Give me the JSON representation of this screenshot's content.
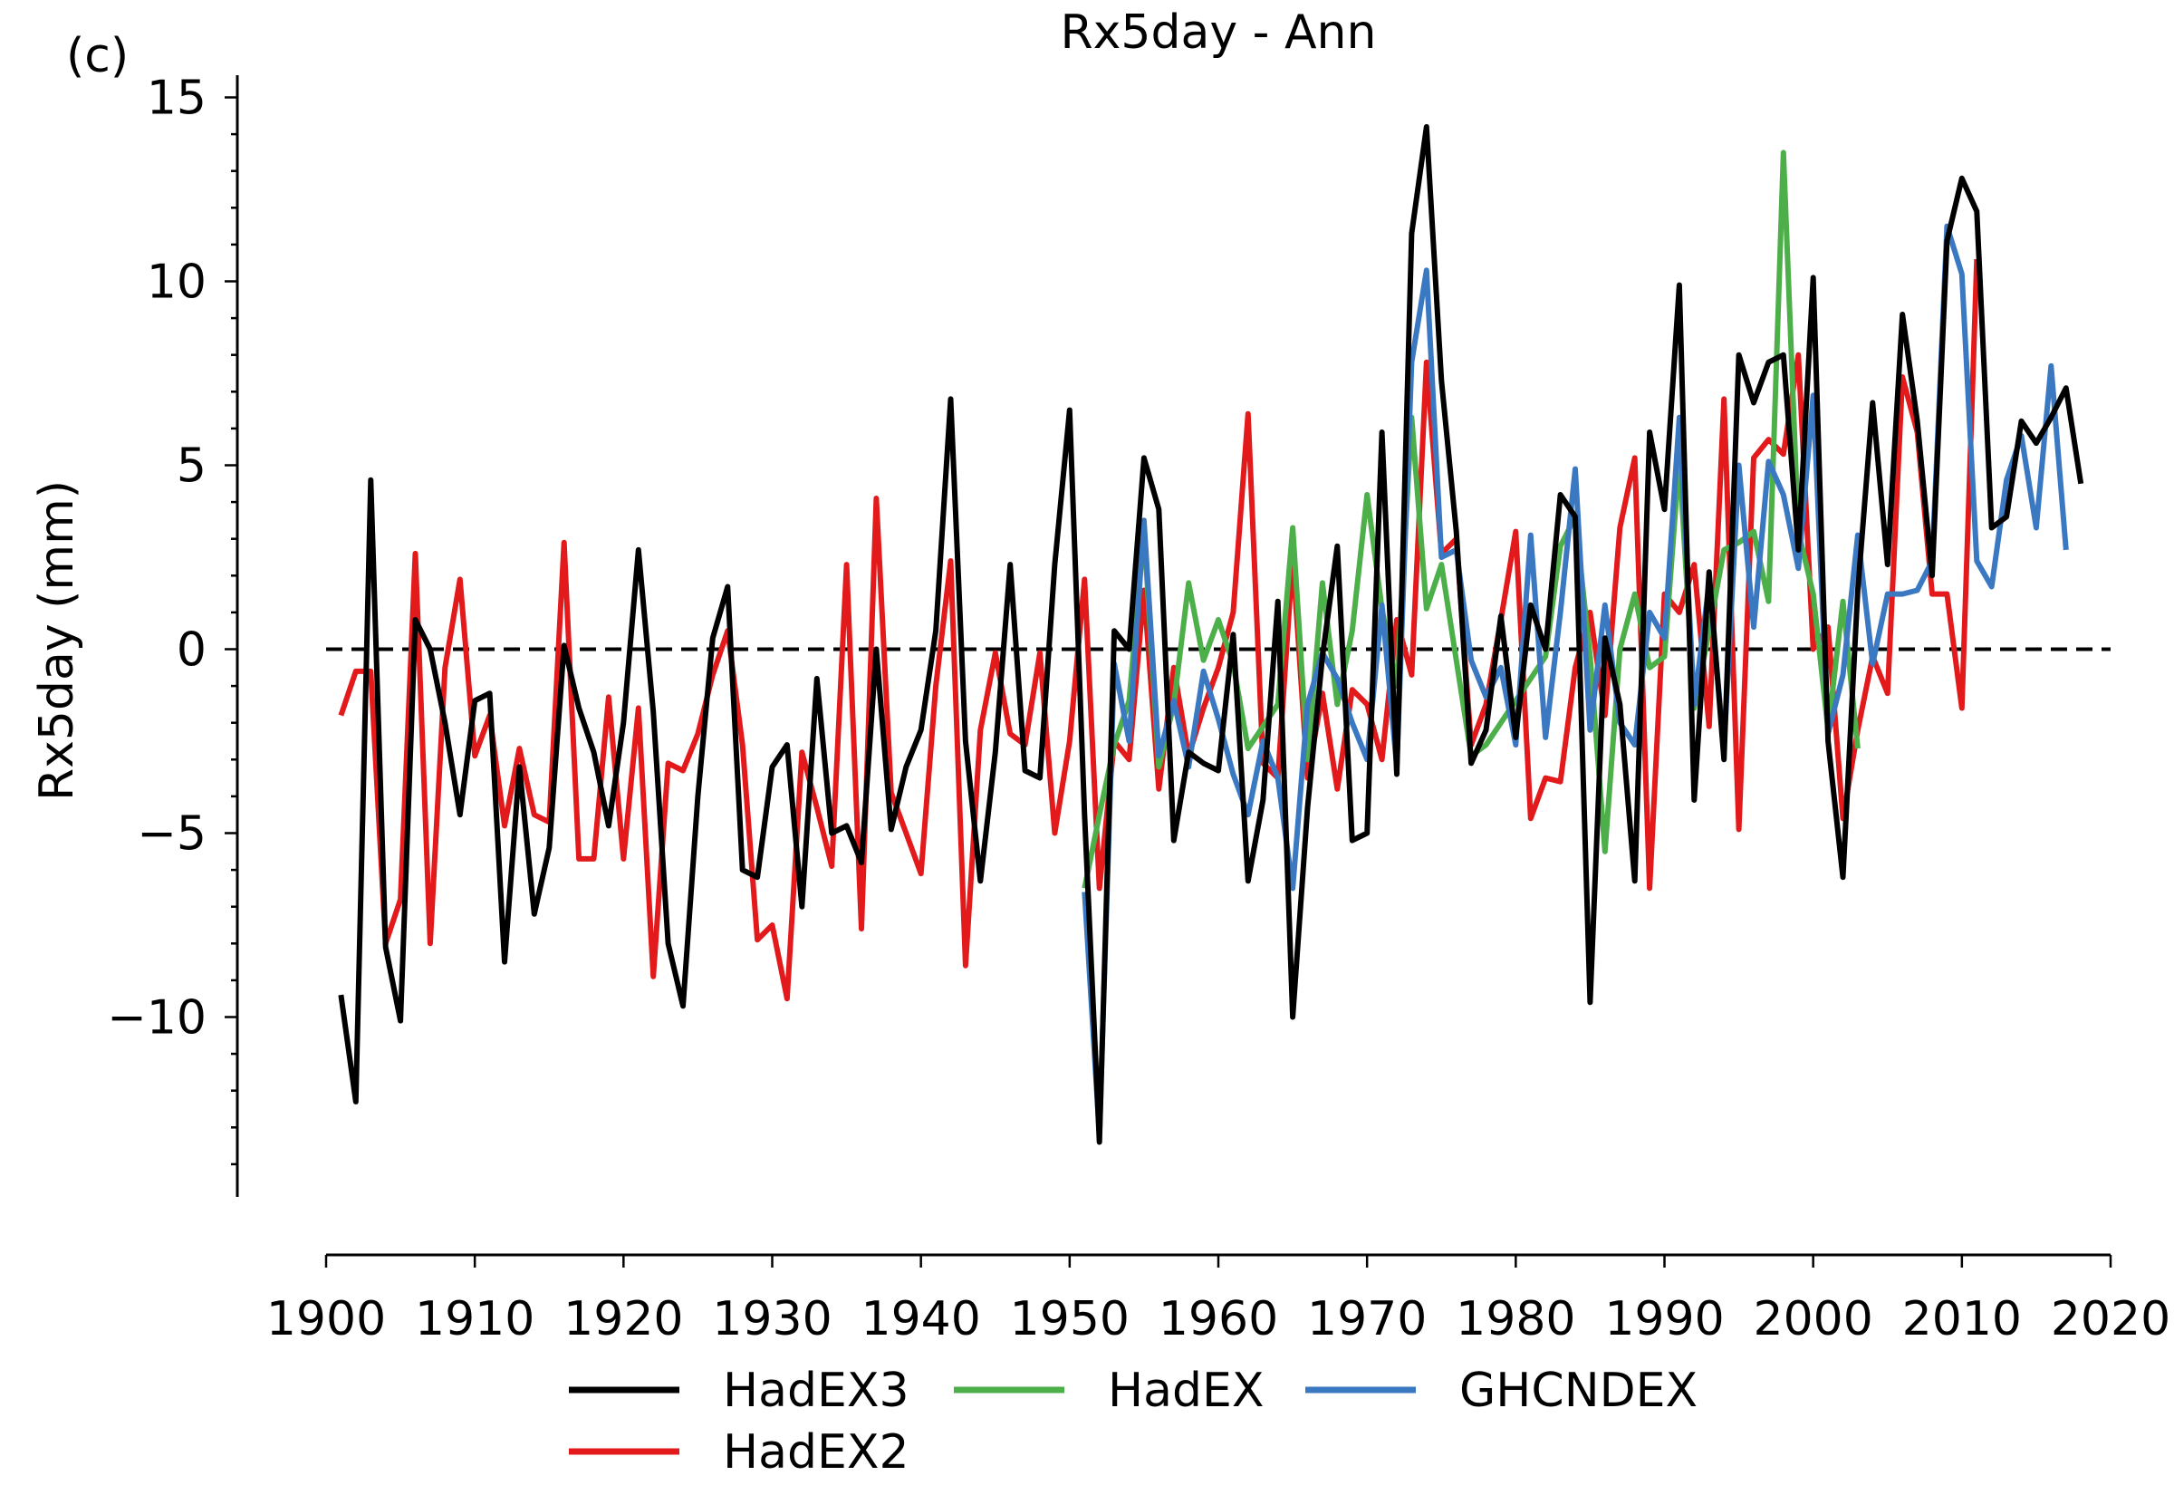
{
  "chart_data": {
    "type": "line",
    "panel_label": "(c)",
    "title": "Rx5day - Ann",
    "ylabel": "Rx5day (mm)",
    "xlabel": "",
    "xlim": [
      1900,
      2020
    ],
    "ylim": [
      -15,
      15.5
    ],
    "xticks": [
      1900,
      1910,
      1920,
      1930,
      1940,
      1950,
      1960,
      1970,
      1980,
      1990,
      2000,
      2010,
      2020
    ],
    "xtick_labels": [
      "1900",
      "1910",
      "1920",
      "1930",
      "1940",
      "1950",
      "1960",
      "1970",
      "1980",
      "1990",
      "2000",
      "2010",
      "2020"
    ],
    "yticks": [
      -10,
      -5,
      0,
      5,
      10,
      15
    ],
    "ytick_labels": [
      "−10",
      "−5",
      "0",
      "5",
      "10",
      "15"
    ],
    "zero_line": true,
    "grid": false,
    "legend_position": "bottom",
    "series": [
      {
        "name": "HadEX2",
        "color": "#e31a1c",
        "x_start": 1901,
        "values": [
          -1.8,
          -0.6,
          -0.6,
          -8.0,
          -6.8,
          2.6,
          -8.0,
          -0.5,
          1.9,
          -2.9,
          -1.8,
          -4.8,
          -2.7,
          -4.5,
          -4.7,
          2.9,
          -5.7,
          -5.7,
          -1.3,
          -5.7,
          -1.6,
          -8.9,
          -3.1,
          -3.3,
          -2.3,
          -0.7,
          0.5,
          -2.6,
          -7.9,
          -7.5,
          -9.5,
          -2.8,
          -4.3,
          -5.9,
          2.3,
          -7.6,
          4.1,
          -3.9,
          -5.0,
          -6.1,
          -1.0,
          2.4,
          -8.6,
          -2.2,
          -0.1,
          -2.3,
          -2.6,
          -0.1,
          -5.0,
          -2.5,
          1.9,
          -6.5,
          -2.5,
          -3.0,
          1.6,
          -3.8,
          -0.5,
          -2.9,
          -1.6,
          -0.5,
          1.0,
          6.4,
          -3.1,
          -3.5,
          2.5,
          -3.5,
          -1.2,
          -3.8,
          -1.1,
          -1.5,
          -3.0,
          0.8,
          -0.7,
          7.8,
          2.6,
          3.0,
          -2.6,
          -1.5,
          0.8,
          3.2,
          -4.6,
          -3.5,
          -3.6,
          -0.5,
          1.0,
          -1.8,
          3.3,
          5.2,
          -6.5,
          1.5,
          1.0,
          2.3,
          -2.1,
          6.8,
          -4.9,
          5.2,
          5.7,
          5.3,
          8.0,
          0.0,
          0.6,
          -4.6,
          -2.2,
          -0.2,
          -1.2,
          7.4,
          5.9,
          1.5,
          1.5,
          -1.6,
          10.6
        ]
      },
      {
        "name": "HadEX",
        "color": "#4daf4a",
        "x_start": 1951,
        "values": [
          -6.5,
          -4.5,
          -2.6,
          -1.4,
          3.2,
          -3.2,
          -1.5,
          1.8,
          -0.3,
          0.8,
          -0.4,
          -2.7,
          -2.1,
          -1.5,
          3.3,
          -3.0,
          1.8,
          -1.5,
          0.5,
          4.2,
          1.1,
          -1.0,
          6.3,
          1.1,
          2.3,
          -0.3,
          -2.9,
          -2.6,
          -2.0,
          -1.4,
          -0.8,
          -0.2,
          2.8,
          3.6,
          -0.2,
          -5.5,
          0.0,
          1.5,
          -0.5,
          -0.2,
          5.2,
          -1.6,
          0.5,
          2.7,
          2.9,
          3.2,
          1.3,
          13.5,
          3.2,
          1.5,
          -2.2,
          1.3,
          -2.7
        ]
      },
      {
        "name": "GHCNDEX",
        "color": "#3a78c2",
        "x_start": 1951,
        "values": [
          -6.6,
          -13.2,
          -0.4,
          -2.5,
          3.5,
          -2.9,
          -1.4,
          -3.2,
          -0.6,
          -1.9,
          -3.4,
          -4.5,
          -2.5,
          -3.5,
          -6.5,
          -1.5,
          -0.1,
          -0.8,
          -2.0,
          -3.0,
          1.2,
          -3.2,
          7.8,
          10.3,
          2.5,
          2.7,
          -0.3,
          -1.3,
          -0.5,
          -2.6,
          3.1,
          -2.4,
          1.0,
          4.9,
          -2.2,
          1.2,
          -2.0,
          -2.6,
          1.0,
          0.3,
          6.3,
          -1.5,
          1.8,
          -2.7,
          5.0,
          0.6,
          5.1,
          4.2,
          2.2,
          6.9,
          -2.3,
          -0.7,
          3.1,
          -0.4,
          1.5,
          1.5,
          1.6,
          2.4,
          11.5,
          10.2,
          2.4,
          1.7,
          4.6,
          5.8,
          3.3,
          7.7,
          2.7
        ]
      },
      {
        "name": "HadEX3",
        "color": "#000000",
        "x_start": 1901,
        "values": [
          -9.4,
          -12.3,
          4.6,
          -8.1,
          -10.1,
          0.8,
          0.0,
          -2.0,
          -4.5,
          -1.4,
          -1.2,
          -8.5,
          -3.2,
          -7.2,
          -5.4,
          0.1,
          -1.6,
          -2.8,
          -4.8,
          -2.0,
          2.7,
          -1.7,
          -8.0,
          -9.7,
          -4.0,
          0.3,
          1.7,
          -6.0,
          -6.2,
          -3.2,
          -2.6,
          -7.0,
          -0.8,
          -5.0,
          -4.8,
          -5.8,
          0.0,
          -4.9,
          -3.2,
          -2.2,
          0.5,
          6.8,
          -2.5,
          -6.3,
          -2.8,
          2.3,
          -3.3,
          -3.5,
          2.3,
          6.5,
          -4.5,
          -13.4,
          0.5,
          0.0,
          5.2,
          3.8,
          -5.2,
          -2.8,
          -3.1,
          -3.3,
          0.4,
          -6.3,
          -4.1,
          1.3,
          -10.0,
          -4.3,
          -0.2,
          2.8,
          -5.2,
          -5.0,
          5.9,
          -3.4,
          11.3,
          14.2,
          7.3,
          3.2,
          -3.1,
          -2.2,
          0.9,
          -2.4,
          1.2,
          0.0,
          4.2,
          3.6,
          -9.6,
          0.3,
          -1.5,
          -6.3,
          5.9,
          3.8,
          9.9,
          -4.1,
          2.1,
          -3.0,
          8.0,
          6.7,
          7.8,
          8.0,
          2.7,
          10.1,
          -2.5,
          -6.2,
          1.6,
          6.7,
          2.3,
          9.1,
          6.2,
          2.0,
          11.1,
          12.8,
          11.9,
          3.3,
          3.6,
          6.2,
          5.6,
          6.3,
          7.1,
          4.5
        ]
      }
    ],
    "legend": {
      "items": [
        {
          "label": "HadEX3",
          "color": "#000000"
        },
        {
          "label": "HadEX",
          "color": "#4daf4a"
        },
        {
          "label": "GHCNDEX",
          "color": "#3a78c2"
        },
        {
          "label": "HadEX2",
          "color": "#e31a1c"
        }
      ]
    }
  }
}
